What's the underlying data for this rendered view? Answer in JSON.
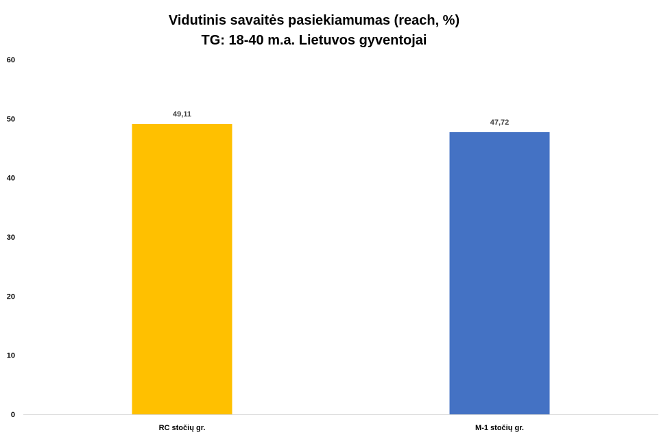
{
  "chart_data": {
    "type": "bar",
    "title": "Vidutinis savaitės pasiekiamumas (reach, %)",
    "subtitle": "TG: 18-40 m.a. Lietuvos gyventojai",
    "categories": [
      "RC stočių gr.",
      "M-1 stočių gr."
    ],
    "values": [
      49.11,
      47.72
    ],
    "data_labels": [
      "49,11",
      "47,72"
    ],
    "bar_colors": [
      "#FFC000",
      "#4472C4"
    ],
    "ylim": [
      0,
      60
    ],
    "yticks": [
      "0",
      "10",
      "20",
      "30",
      "40",
      "50",
      "60"
    ],
    "xlabel": "",
    "ylabel": "",
    "grid": false,
    "legend": "none",
    "axis_color": "#d9d9d9"
  }
}
